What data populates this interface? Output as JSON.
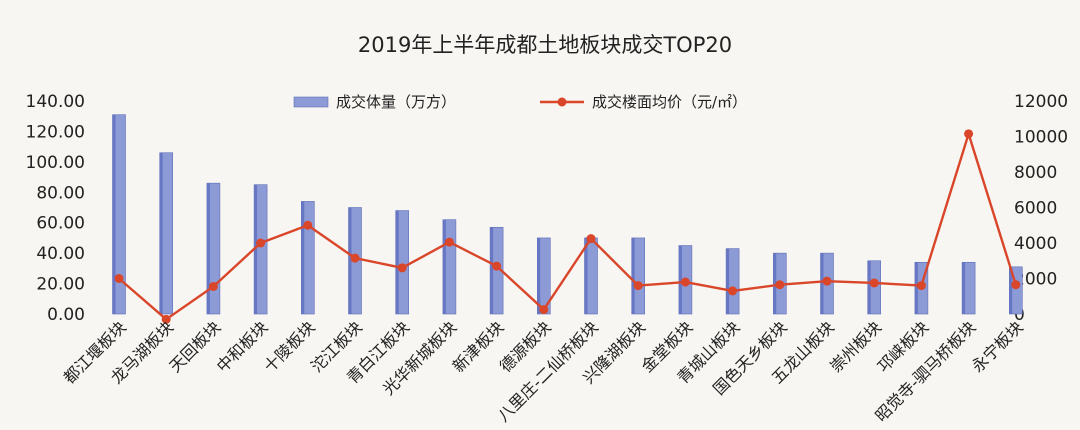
{
  "chart_data": {
    "type": "bar+line",
    "title": "2019年上半年成都土地板块成交TOP20",
    "categories": [
      "都江堰板块",
      "龙马湖板块",
      "天回板块",
      "中和板块",
      "十陵板块",
      "沱江板块",
      "青白江板块",
      "光华新城板块",
      "新津板块",
      "德源板块",
      "八里庄-二仙桥板块",
      "兴隆湖板块",
      "金堂板块",
      "青城山板块",
      "国色天乡板块",
      "五龙山板块",
      "崇州板块",
      "邛崃板块",
      "昭觉寺-驷马桥板块",
      "永宁板块"
    ],
    "series": [
      {
        "name": "成交体量（万方）",
        "kind": "bar",
        "axis": "left",
        "color": "#8c9ad6",
        "values": [
          131,
          106,
          86,
          85,
          74,
          70,
          68,
          62,
          57,
          50,
          50,
          50,
          45,
          43,
          40,
          40,
          35,
          34,
          34,
          31
        ]
      },
      {
        "name": "成交楼面均价（元/㎡）",
        "kind": "line",
        "axis": "right",
        "color": "#d9462a",
        "values": [
          2000,
          -300,
          1550,
          4000,
          5000,
          3150,
          2600,
          4050,
          2700,
          250,
          4250,
          1600,
          1800,
          1300,
          1650,
          1850,
          1750,
          1600,
          10150,
          1650
        ]
      }
    ],
    "y_left": {
      "ylim": [
        0,
        140
      ],
      "ticks": [
        "0.00",
        "20.00",
        "40.00",
        "60.00",
        "80.00",
        "100.00",
        "120.00",
        "140.00"
      ]
    },
    "y_right": {
      "ylim": [
        0,
        12000
      ],
      "ticks": [
        "0",
        "2000",
        "4000",
        "6000",
        "8000",
        "10000",
        "12000"
      ]
    },
    "legend_position": "top-center",
    "grid": false
  }
}
